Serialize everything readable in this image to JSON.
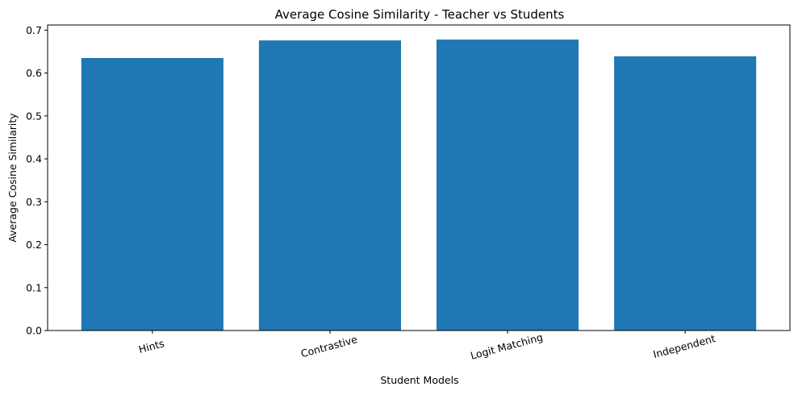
{
  "chart_data": {
    "type": "bar",
    "title": "Average Cosine Similarity - Teacher vs Students",
    "xlabel": "Student Models",
    "ylabel": "Average Cosine Similarity",
    "categories": [
      "Hints",
      "Contrastive",
      "Logit Matching",
      "Independent"
    ],
    "values": [
      0.635,
      0.676,
      0.678,
      0.639
    ],
    "ylim": [
      0,
      0.712
    ],
    "yticks": [
      0.0,
      0.1,
      0.2,
      0.3,
      0.4,
      0.5,
      0.6,
      0.7
    ],
    "ytick_labels": [
      "0.0",
      "0.1",
      "0.2",
      "0.3",
      "0.4",
      "0.5",
      "0.6",
      "0.7"
    ],
    "bar_color": "#1f77b4",
    "grid": false,
    "xtick_rotation": "15 degrees"
  }
}
